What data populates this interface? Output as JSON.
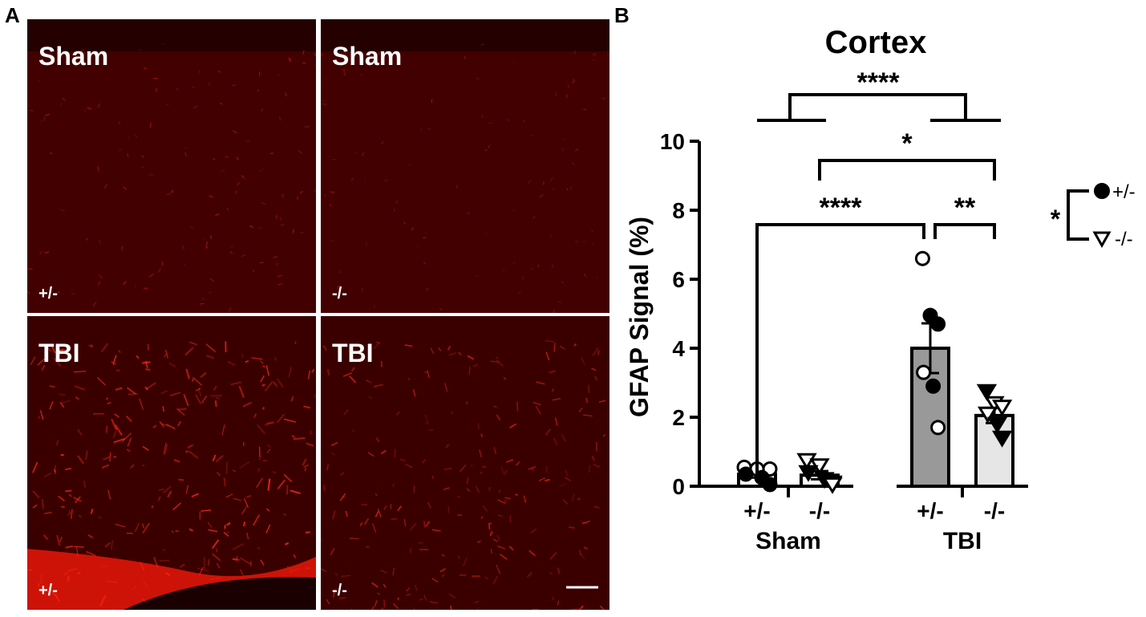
{
  "panels": {
    "a_label": "A",
    "b_label": "B"
  },
  "micrographs": [
    {
      "condition": "Sham",
      "genotype": "+/-",
      "intensity": 0.25
    },
    {
      "condition": "Sham",
      "genotype": "-/-",
      "intensity": 0.15
    },
    {
      "condition": "TBI",
      "genotype": "+/-",
      "intensity": 0.9
    },
    {
      "condition": "TBI",
      "genotype": "-/-",
      "intensity": 0.65
    }
  ],
  "chart_data": {
    "type": "bar",
    "title": "Cortex",
    "ylabel": "GFAP Signal (%)",
    "ylim": [
      0,
      10
    ],
    "yticks": [
      0,
      2,
      4,
      6,
      8,
      10
    ],
    "groups": [
      "Sham",
      "TBI"
    ],
    "categories": [
      "+/-",
      "-/-",
      "+/-",
      "-/-"
    ],
    "bars": [
      {
        "group": "Sham",
        "genotype": "+/-",
        "mean": 0.35,
        "sem": 0.1,
        "color": "#ffffff",
        "points": [
          {
            "y": 0.55,
            "filled": false
          },
          {
            "y": 0.5,
            "filled": false
          },
          {
            "y": 0.5,
            "filled": false
          },
          {
            "y": 0.35,
            "filled": true
          },
          {
            "y": 0.25,
            "filled": true
          },
          {
            "y": 0.05,
            "filled": true
          }
        ]
      },
      {
        "group": "Sham",
        "genotype": "-/-",
        "mean": 0.32,
        "sem": 0.12,
        "color": "#ffffff",
        "points": [
          {
            "y": 0.75,
            "filled": false
          },
          {
            "y": 0.6,
            "filled": false
          },
          {
            "y": 0.1,
            "filled": false
          },
          {
            "y": 0.4,
            "filled": true
          },
          {
            "y": 0.2,
            "filled": true
          },
          {
            "y": 0.05,
            "filled": false
          }
        ]
      },
      {
        "group": "TBI",
        "genotype": "+/-",
        "mean": 4.0,
        "sem": 0.72,
        "color": "#999999",
        "points": [
          {
            "y": 6.6,
            "filled": false
          },
          {
            "y": 4.95,
            "filled": true
          },
          {
            "y": 4.7,
            "filled": true
          },
          {
            "y": 3.3,
            "filled": false
          },
          {
            "y": 2.9,
            "filled": true
          },
          {
            "y": 1.7,
            "filled": false
          }
        ]
      },
      {
        "group": "TBI",
        "genotype": "-/-",
        "mean": 2.05,
        "sem": 0.22,
        "color": "#e6e6e6",
        "points": [
          {
            "y": 2.75,
            "filled": true
          },
          {
            "y": 2.4,
            "filled": false
          },
          {
            "y": 2.3,
            "filled": false
          },
          {
            "y": 2.1,
            "filled": false
          },
          {
            "y": 1.8,
            "filled": true
          },
          {
            "y": 1.4,
            "filled": true
          }
        ]
      }
    ],
    "significance": [
      {
        "label": "****",
        "type": "group",
        "from": 0,
        "to": 1
      },
      {
        "label": "*",
        "type": "pair",
        "from": 1,
        "to": 3
      },
      {
        "label": "****",
        "type": "pair",
        "from": 0,
        "to": 2
      },
      {
        "label": "**",
        "type": "pair",
        "from": 2,
        "to": 3
      }
    ],
    "legend": {
      "placement": "right",
      "significance": "*",
      "entries": [
        {
          "symbol": "filled-circle",
          "label": "+/-"
        },
        {
          "symbol": "open-triangle",
          "label": "-/-"
        }
      ]
    }
  }
}
